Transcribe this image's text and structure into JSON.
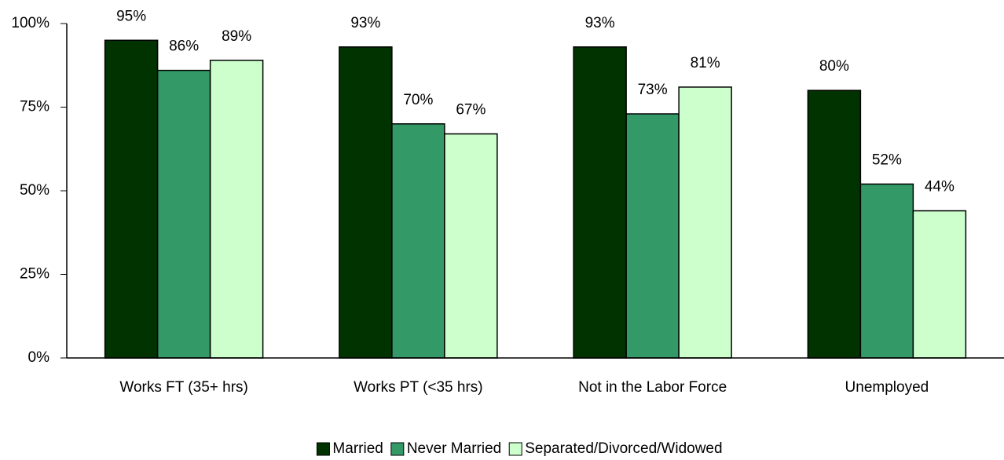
{
  "chart_data": {
    "type": "bar",
    "categories": [
      "Works FT (35+ hrs)",
      "Works PT (<35 hrs)",
      "Not in the Labor Force",
      "Unemployed"
    ],
    "series": [
      {
        "name": "Married",
        "color": "#003300",
        "values": [
          95,
          93,
          93,
          80
        ],
        "value_labels": [
          "95%",
          "93%",
          "93%",
          "80%"
        ]
      },
      {
        "name": "Never Married",
        "color": "#339966",
        "values": [
          86,
          70,
          73,
          52
        ],
        "value_labels": [
          "86%",
          "70%",
          "73%",
          "52%"
        ]
      },
      {
        "name": "Separated/Divorced/Widowed",
        "color": "#ccffcc",
        "values": [
          89,
          67,
          81,
          44
        ],
        "value_labels": [
          "89%",
          "67%",
          "81%",
          "44%"
        ]
      }
    ],
    "ylim": [
      0,
      100
    ],
    "yticks": [
      {
        "value": 0,
        "label": "0%"
      },
      {
        "value": 25,
        "label": "25%"
      },
      {
        "value": 50,
        "label": "50%"
      },
      {
        "value": 75,
        "label": "75%"
      },
      {
        "value": 100,
        "label": "100%"
      }
    ],
    "grid": false,
    "legend": "bottom"
  }
}
